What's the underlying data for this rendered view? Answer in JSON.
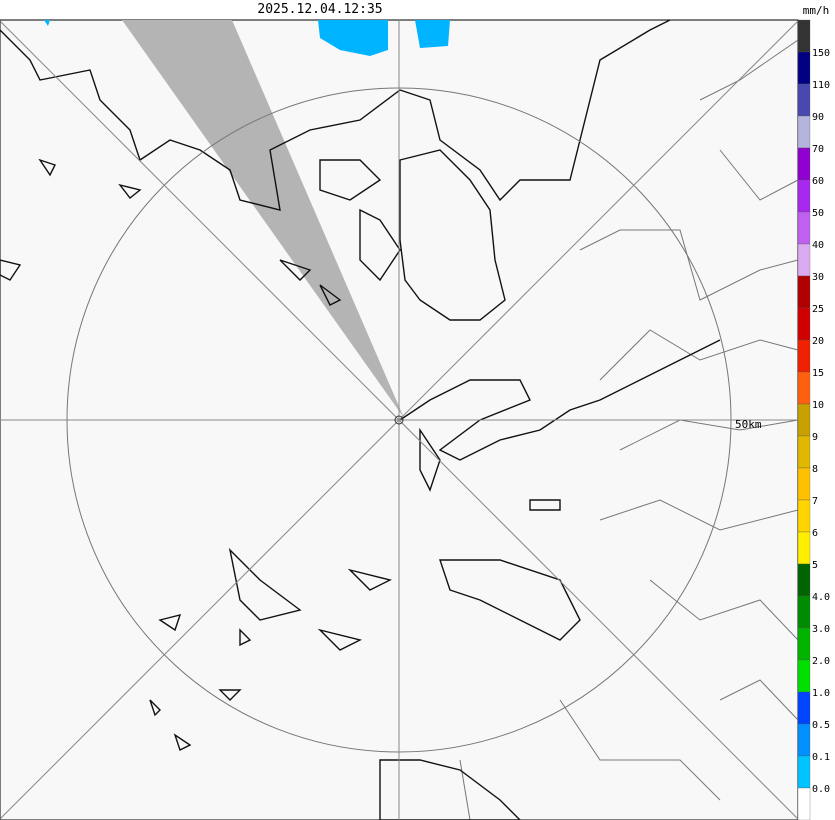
{
  "timestamp": "2025.12.04.12:35",
  "unit": "mm/h",
  "range_label": "50km",
  "legend": {
    "labels": [
      "150",
      "110",
      "90",
      "70",
      "60",
      "50",
      "40",
      "30",
      "25",
      "20",
      "15",
      "10",
      "9",
      "8",
      "7",
      "6",
      "5",
      "4.0",
      "3.0",
      "2.0",
      "1.0",
      "0.5",
      "0.1",
      "0.0"
    ],
    "colors": [
      "#333333",
      "#000080",
      "#4848b0",
      "#b4b4dc",
      "#9000d0",
      "#a828f0",
      "#c060f0",
      "#dcaaf0",
      "#b00000",
      "#d00000",
      "#f02000",
      "#ff6010",
      "#c8a000",
      "#e0b800",
      "#ffc000",
      "#ffd400",
      "#ffee00",
      "#006400",
      "#008c00",
      "#00b400",
      "#00e000",
      "#0044ff",
      "#0090ff",
      "#00c4ff",
      "#ffffff"
    ]
  }
}
